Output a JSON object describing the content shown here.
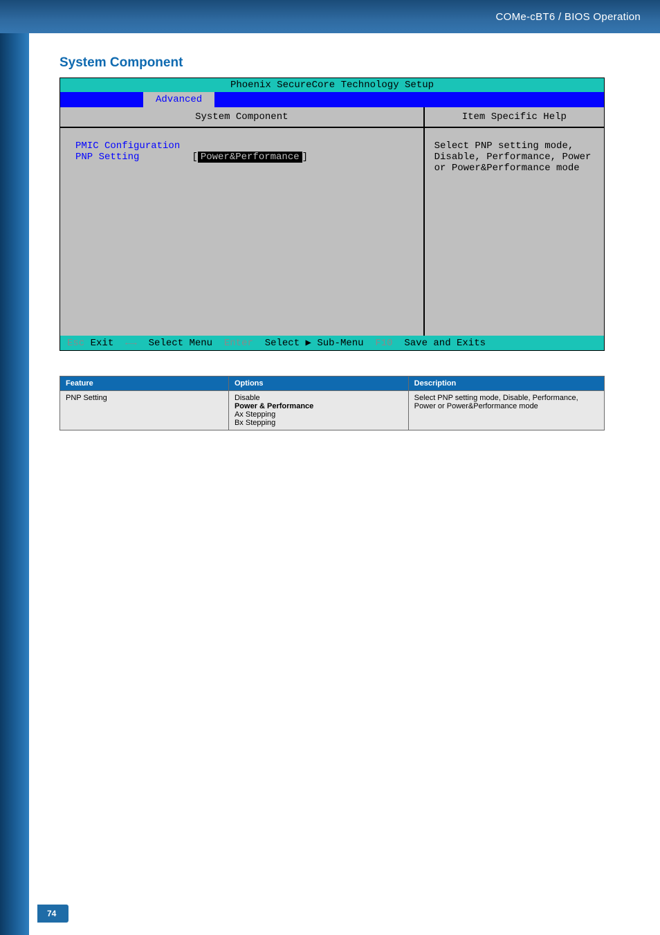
{
  "page": {
    "breadcrumb": "COMe-cBT6 / BIOS Operation",
    "section_title": "System Component",
    "page_number": "74",
    "pill_bg": "#1f6ca7",
    "header_gradient_from": "#1a4b78",
    "header_gradient_to": "#3576b0",
    "rail_gradient_from": "#0c3a63",
    "rail_gradient_to": "#2f7fbf"
  },
  "bios": {
    "title_text": "Phoenix SecureCore Technology Setup",
    "title_bg": "#1ac4b7",
    "tabbar_bg": "#0303ff",
    "tab_label": "Advanced",
    "tab_bg": "#bfbfbf",
    "tab_color": "#0303ff",
    "left_header": "System Component",
    "right_header": "Item Specific Help",
    "panel_bg": "#bfbfbf",
    "line1": "PMIC Configuration",
    "label_color": "#0303ff",
    "line2_label": "PNP Setting",
    "bracket_open": "[",
    "bracket_close": "]",
    "line2_value": "Power&Performance",
    "selected_bg": "#000000",
    "selected_fg": "#bfbfbf",
    "help_text": "Select PNP setting mode, Disable, Performance, Power or Power&Performance mode",
    "footer_bg": "#1ac4b7",
    "footer_parts": {
      "esc": "Esc",
      "exit": " Exit  ",
      "arrows": "←→",
      "select_menu": "  Select Menu  ",
      "enter": "Enter",
      "select_submenu": "  Select ▶ Sub-Menu  ",
      "f10": "F10",
      "save_exits": "  Save and Exits"
    }
  },
  "table": {
    "header_bg": "#0f6ab0",
    "header_fg": "#ffffff",
    "cell_bg": "#e8e8e8",
    "border_color": "#6a6a6a",
    "columns": [
      "Feature",
      "Options",
      "Description"
    ],
    "rows": [
      {
        "feature": "PNP Setting",
        "options": [
          "Disable",
          "Power & Performance",
          "Ax Stepping",
          "Bx Stepping"
        ],
        "bold_index": 1,
        "description": "Select PNP setting mode, Disable, Performance, Power or Power&Performance mode"
      }
    ]
  }
}
